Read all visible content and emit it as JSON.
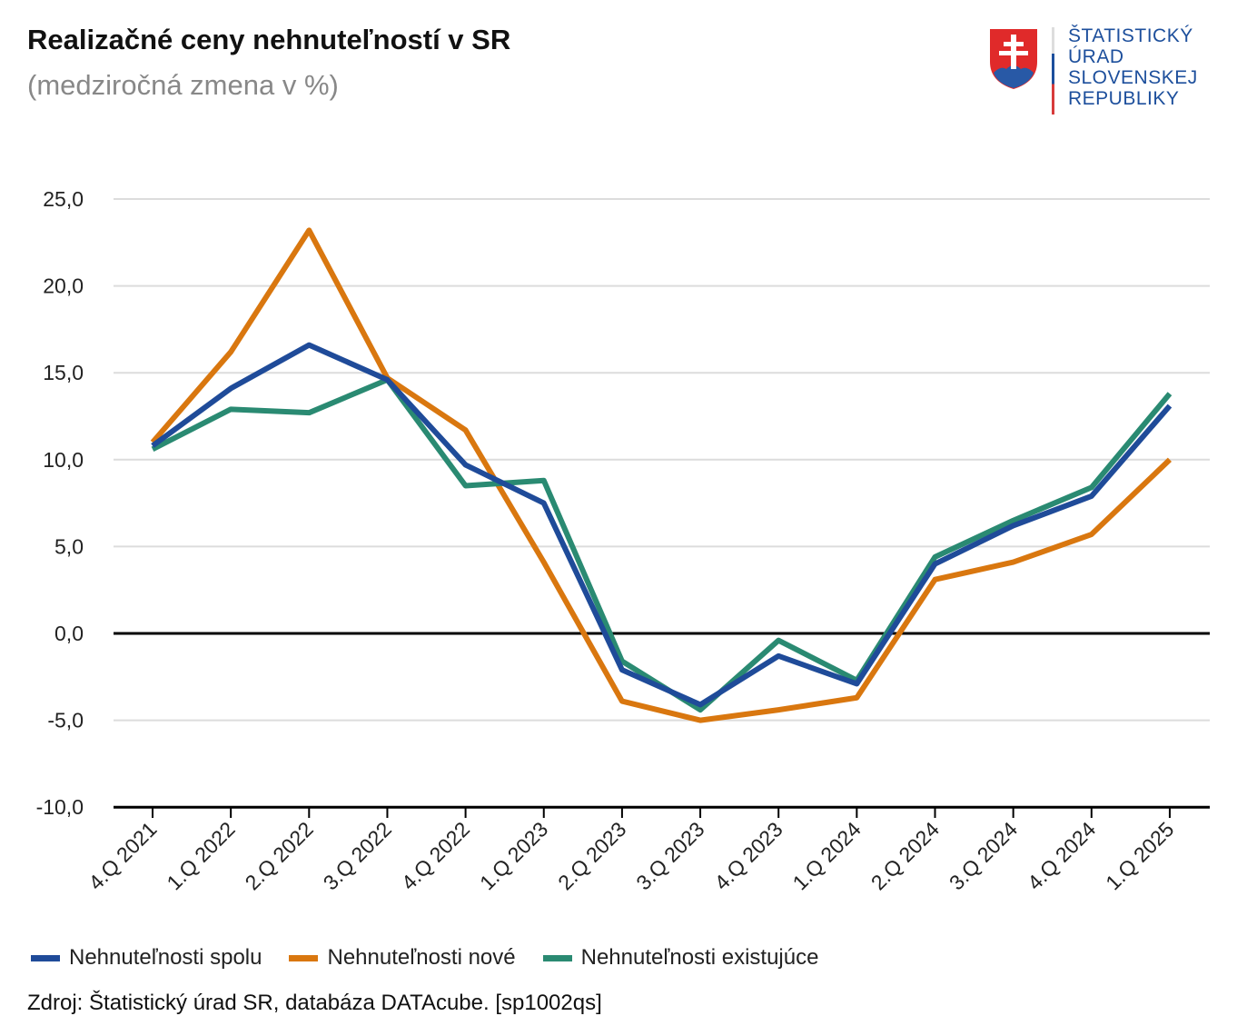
{
  "chart_data": {
    "type": "line",
    "title": "Realizačné ceny nehnuteľností v SR",
    "subtitle": "(medziročná zmena v %)",
    "categories": [
      "4.Q 2021",
      "1.Q 2022",
      "2.Q 2022",
      "3.Q 2022",
      "4.Q 2022",
      "1.Q 2023",
      "2.Q 2023",
      "3.Q 2023",
      "4.Q 2023",
      "1.Q 2024",
      "2.Q 2024",
      "3.Q 2024",
      "4.Q 2024",
      "1.Q 2025"
    ],
    "ylim": [
      -10,
      25
    ],
    "yticks": [
      25,
      20,
      15,
      10,
      5,
      0,
      -5,
      -10
    ],
    "ytick_labels": [
      "25,0",
      "20,0",
      "15,0",
      "10,0",
      "5,0",
      "0,0",
      "-5,0",
      "-10,0"
    ],
    "grid": true,
    "legend_position": "bottom",
    "series": [
      {
        "name": "Nehnuteľnosti spolu",
        "color": "#1f4b99",
        "values": [
          10.8,
          14.1,
          16.6,
          14.6,
          9.7,
          7.5,
          -2.1,
          -4.1,
          -1.3,
          -2.9,
          4.0,
          6.2,
          7.9,
          13.1
        ]
      },
      {
        "name": "Nehnuteľnosti nové",
        "color": "#d9770f",
        "values": [
          11.0,
          16.2,
          23.2,
          14.7,
          11.7,
          4.1,
          -3.9,
          -5.0,
          -4.4,
          -3.7,
          3.1,
          4.1,
          5.7,
          10.0
        ]
      },
      {
        "name": "Nehnuteľnosti existujúce",
        "color": "#2a8a72",
        "values": [
          10.6,
          12.9,
          12.7,
          14.6,
          8.5,
          8.8,
          -1.6,
          -4.4,
          -0.4,
          -2.7,
          4.4,
          6.5,
          8.4,
          13.8
        ]
      }
    ]
  },
  "logo": {
    "lines": [
      "ŠTATISTICKÝ",
      "ÚRAD",
      "SLOVENSKEJ",
      "REPUBLIKY"
    ]
  },
  "source": "Zdroj: Štatistický úrad SR, databáza DATAcube. [sp1002qs]"
}
